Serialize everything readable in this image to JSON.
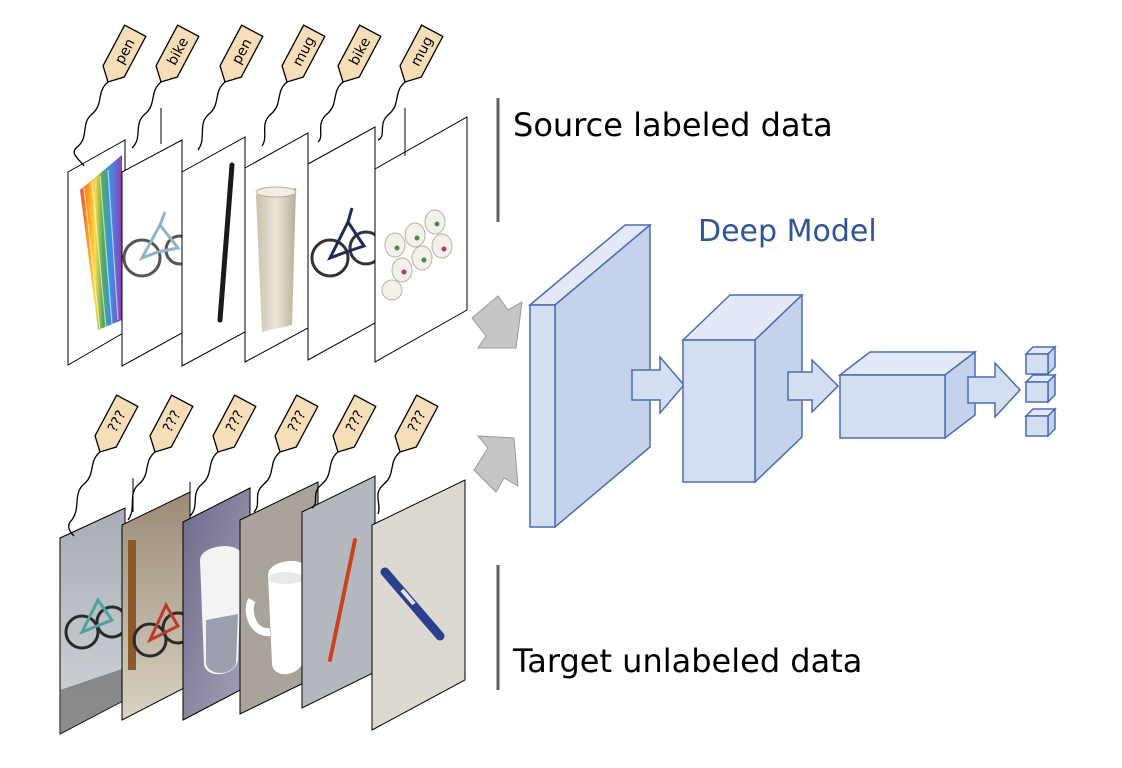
{
  "diagram": {
    "source_heading": "Source labeled data",
    "target_heading": "Target unlabeled data",
    "model_title": "Deep Model",
    "source_labels": [
      "pen",
      "bike",
      "pen",
      "mug",
      "bike",
      "mug"
    ],
    "source_images": [
      "colored-pens-image",
      "bicycle-image",
      "black-pen-image",
      "white-mug-image",
      "bicycle-image",
      "floral-mugs-image"
    ],
    "target_labels": [
      "???",
      "???",
      "???",
      "???",
      "???",
      "???"
    ],
    "target_images": [
      "bicycle-photo",
      "bicycle-photo",
      "mug-photo",
      "mug-photo",
      "red-pen-photo",
      "blue-pen-photo"
    ],
    "colors": {
      "tag_fill": "#f6dfb8",
      "block_fill": "#d5dff2",
      "block_stroke": "#4a6db0",
      "model_title": "#2f5597",
      "input_arrow": "#c6c6c6"
    }
  }
}
